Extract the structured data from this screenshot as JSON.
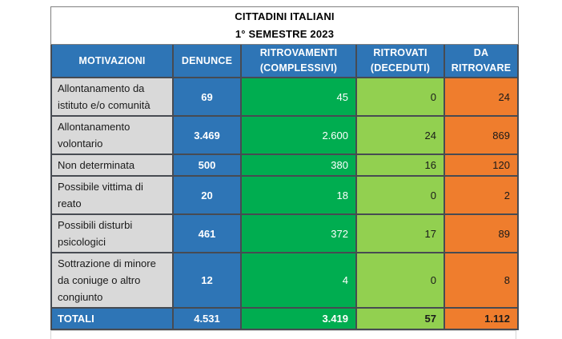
{
  "title": {
    "line1": "CITTADINI ITALIANI",
    "line2": "1° SEMESTRE 2023"
  },
  "table": {
    "header": {
      "motivazioni": {
        "line1": "MOTIVAZIONI",
        "line2": ""
      },
      "denunce": {
        "line1": "DENUNCE",
        "line2": ""
      },
      "ritrovamenti": {
        "line1": "RITROVAMENTI",
        "line2": "(COMPLESSIVI)"
      },
      "ritrovati": {
        "line1": "RITROVATI",
        "line2": "(DECEDUTI)"
      },
      "da_ritrovare": {
        "line1": "DA",
        "line2": "RITROVARE"
      }
    },
    "rows": [
      {
        "motivazione": "Allontanamento da istituto e/o comunità",
        "denunce": "69",
        "ritrovamenti": "45",
        "ritrovati": "0",
        "da_ritrovare": "24"
      },
      {
        "motivazione": "Allontanamento volontario",
        "denunce": "3.469",
        "ritrovamenti": "2.600",
        "ritrovati": "24",
        "da_ritrovare": "869"
      },
      {
        "motivazione": "Non determinata",
        "denunce": "500",
        "ritrovamenti": "380",
        "ritrovati": "16",
        "da_ritrovare": "120"
      },
      {
        "motivazione": "Possibile vittima di reato",
        "denunce": "20",
        "ritrovamenti": "18",
        "ritrovati": "0",
        "da_ritrovare": "2"
      },
      {
        "motivazione": "Possibili disturbi psicologici",
        "denunce": "461",
        "ritrovamenti": "372",
        "ritrovati": "17",
        "da_ritrovare": "89"
      },
      {
        "motivazione": "Sottrazione di minore da coniuge o altro congiunto",
        "denunce": "12",
        "ritrovamenti": "4",
        "ritrovati": "0",
        "da_ritrovare": "8"
      }
    ],
    "totals": {
      "label": "TOTALI",
      "denunce": "4.531",
      "ritrovamenti": "3.419",
      "ritrovati": "57",
      "da_ritrovare": "1.112"
    }
  },
  "colors": {
    "blue": "#2E75B6",
    "green": "#00AD50",
    "lgreen": "#92D050",
    "orange": "#EF7D2D",
    "graycell": "#D9D9D9",
    "line": "#474B52"
  }
}
